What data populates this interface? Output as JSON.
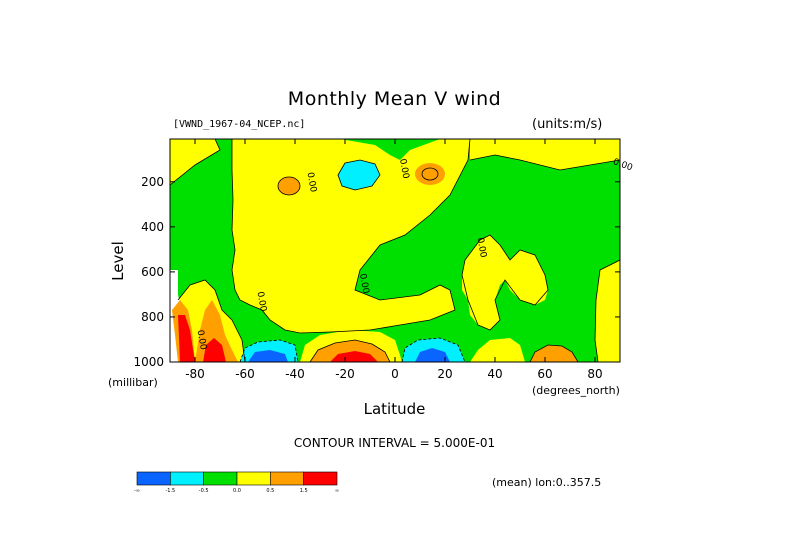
{
  "chart_data": {
    "type": "heatmap",
    "title": "Monthly Mean V wind",
    "file_label": "[VWND_1967-04_NCEP.nc]",
    "units_label": "(units:m/s)",
    "xlabel": "Latitude",
    "xlabel_unit": "(degrees_north)",
    "ylabel": "Level",
    "ylabel_unit": "(millibar)",
    "xlim": [
      -90,
      90
    ],
    "ylim": [
      1000,
      10
    ],
    "x_ticks": [
      -80,
      -60,
      -40,
      -20,
      0,
      20,
      40,
      60,
      80
    ],
    "y_ticks": [
      200,
      400,
      600,
      800,
      1000
    ],
    "contour_interval": "CONTOUR INTERVAL = 5.000E-01",
    "mean_label": "(mean) lon:0..357.5",
    "contour_labels": [
      "0.00",
      "0.00",
      "0.00",
      "0.00",
      "0.00",
      "0.00",
      "0.00"
    ],
    "colorbar": {
      "colors": [
        "#0a64ff",
        "#00f0ff",
        "#00e000",
        "#ffff00",
        "#ffa000",
        "#ff0000"
      ],
      "tick_labels": [
        "-∞",
        "-1.5",
        "-0.5",
        "0.0",
        "0.5",
        "1.5",
        "∞"
      ]
    }
  }
}
